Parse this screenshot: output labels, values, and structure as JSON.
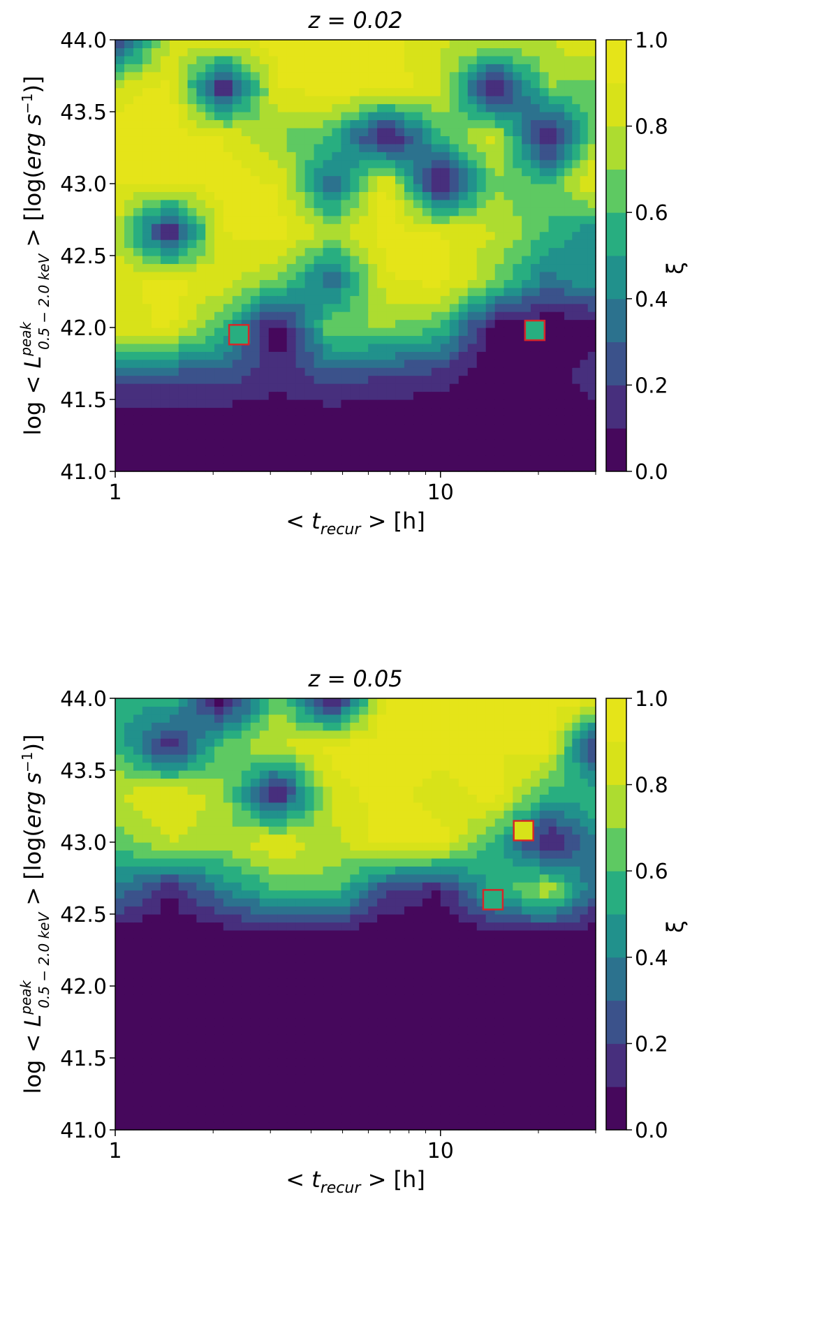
{
  "chart_data": [
    {
      "type": "heatmap",
      "panel_label": "z = 0.02",
      "title": "z = 0.02",
      "xlabel": "< t_recur > [h]",
      "ylabel": "log < L^peak_0.5−2.0 keV > [log(erg s^−1)]",
      "x_scale": "log",
      "xlim": [
        1,
        30
      ],
      "ylim": [
        41.0,
        44.0
      ],
      "x_ticks": [
        "1",
        "10"
      ],
      "y_ticks": [
        "41.0",
        "41.5",
        "42.0",
        "42.5",
        "43.0",
        "43.5",
        "44.0"
      ],
      "colorbar": {
        "label": "ξ",
        "range": [
          0.0,
          1.0
        ],
        "ticks": [
          "0.0",
          "0.2",
          "0.4",
          "0.6",
          "0.8",
          "1.0"
        ],
        "levels": 10
      },
      "x": [
        1.0,
        1.47,
        2.15,
        3.16,
        4.64,
        6.81,
        10.0,
        14.7,
        21.5,
        30.0
      ],
      "y": [
        41.0,
        41.333,
        41.667,
        42.0,
        42.333,
        42.667,
        43.0,
        43.333,
        43.667,
        44.0
      ],
      "z": [
        [
          0.0,
          0.0,
          0.0,
          0.0,
          0.0,
          0.0,
          0.0,
          0.0,
          0.0,
          0.0
        ],
        [
          0.0,
          0.0,
          0.0,
          0.0,
          0.0,
          0.0,
          0.0,
          0.0,
          0.0,
          0.0
        ],
        [
          0.25,
          0.25,
          0.25,
          0.15,
          0.25,
          0.2,
          0.15,
          0.0,
          0.0,
          0.2
        ],
        [
          0.85,
          0.92,
          0.6,
          0.0,
          0.7,
          0.7,
          0.6,
          0.0,
          0.0,
          0.0
        ],
        [
          0.85,
          0.95,
          0.85,
          0.7,
          0.3,
          0.88,
          0.95,
          0.7,
          0.35,
          0.5
        ],
        [
          0.8,
          0.05,
          0.9,
          0.95,
          0.75,
          0.95,
          0.9,
          0.8,
          0.6,
          0.4
        ],
        [
          0.9,
          0.9,
          0.95,
          0.9,
          0.3,
          0.95,
          0.0,
          0.7,
          0.6,
          0.95
        ],
        [
          0.95,
          0.95,
          0.9,
          0.7,
          0.6,
          0.0,
          0.6,
          0.85,
          0.0,
          0.7
        ],
        [
          0.85,
          0.95,
          0.05,
          0.9,
          0.95,
          0.95,
          0.85,
          0.0,
          0.7,
          0.65
        ],
        [
          0.1,
          0.8,
          0.9,
          0.95,
          0.95,
          0.95,
          0.8,
          0.85,
          0.8,
          0.9
        ]
      ],
      "markers": [
        {
          "x": 2.4,
          "y": 41.95,
          "xi": 0.55
        },
        {
          "x": 19.5,
          "y": 41.98,
          "xi": 0.55
        }
      ]
    },
    {
      "type": "heatmap",
      "panel_label": "z = 0.05",
      "title": "z = 0.05",
      "xlabel": "< t_recur > [h]",
      "ylabel": "log < L^peak_0.5−2.0 keV > [log(erg s^−1)]",
      "x_scale": "log",
      "xlim": [
        1,
        30
      ],
      "ylim": [
        41.0,
        44.0
      ],
      "x_ticks": [
        "1",
        "10"
      ],
      "y_ticks": [
        "41.0",
        "41.5",
        "42.0",
        "42.5",
        "43.0",
        "43.5",
        "44.0"
      ],
      "colorbar": {
        "label": "ξ",
        "range": [
          0.0,
          1.0
        ],
        "ticks": [
          "0.0",
          "0.2",
          "0.4",
          "0.6",
          "0.8",
          "1.0"
        ],
        "levels": 10
      },
      "x": [
        1.0,
        1.47,
        2.15,
        3.16,
        4.64,
        6.81,
        10.0,
        14.7,
        21.5,
        30.0
      ],
      "y": [
        41.0,
        41.333,
        41.667,
        42.0,
        42.333,
        42.667,
        43.0,
        43.333,
        43.667,
        44.0
      ],
      "z": [
        [
          0.0,
          0.0,
          0.0,
          0.0,
          0.0,
          0.0,
          0.0,
          0.0,
          0.0,
          0.0
        ],
        [
          0.0,
          0.0,
          0.0,
          0.0,
          0.0,
          0.0,
          0.0,
          0.0,
          0.0,
          0.0
        ],
        [
          0.0,
          0.0,
          0.0,
          0.0,
          0.0,
          0.0,
          0.0,
          0.0,
          0.0,
          0.0
        ],
        [
          0.0,
          0.0,
          0.0,
          0.0,
          0.0,
          0.0,
          0.0,
          0.0,
          0.0,
          0.0
        ],
        [
          0.0,
          0.0,
          0.0,
          0.0,
          0.0,
          0.0,
          0.0,
          0.0,
          0.0,
          0.0
        ],
        [
          0.4,
          0.1,
          0.4,
          0.6,
          0.65,
          0.2,
          0.1,
          0.55,
          0.8,
          0.3
        ],
        [
          0.65,
          0.8,
          0.75,
          0.9,
          0.75,
          0.95,
          0.95,
          0.55,
          0.05,
          0.4
        ],
        [
          0.8,
          0.9,
          0.75,
          0.05,
          0.85,
          0.95,
          0.85,
          0.95,
          0.55,
          0.6
        ],
        [
          0.6,
          0.1,
          0.65,
          0.8,
          0.95,
          0.95,
          0.95,
          0.9,
          0.95,
          0.1
        ],
        [
          0.5,
          0.6,
          0.0,
          0.7,
          0.0,
          0.95,
          0.95,
          0.95,
          0.95,
          0.95
        ]
      ],
      "markers": [
        {
          "x": 18.0,
          "y": 43.08,
          "xi": 0.85
        },
        {
          "x": 14.5,
          "y": 42.6,
          "xi": 0.55
        }
      ]
    }
  ]
}
